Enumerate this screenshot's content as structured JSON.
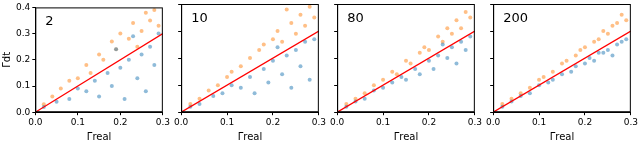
{
  "chart_data": [
    {
      "type": "scatter",
      "title": "2",
      "x_label": "Γreal",
      "y_label": "Γdt",
      "xlim": [
        0,
        0.3
      ],
      "ylim": [
        0,
        0.4
      ],
      "xticks": [
        {
          "value": 0,
          "label": "0.0"
        },
        0.1,
        0.2,
        0.3
      ],
      "yticks": [
        {
          "value": 0,
          "label": "0.0"
        },
        0.1,
        0.2,
        0.3,
        0.4
      ],
      "grid": false,
      "series": [
        {
          "type": "scatter",
          "color": "#1f77b4",
          "x": [
            0.02,
            0.05,
            0.08,
            0.1,
            0.12,
            0.14,
            0.15,
            0.17,
            0.18,
            0.2,
            0.21,
            0.22,
            0.24,
            0.25,
            0.26,
            0.27,
            0.28,
            0.29,
            0.19,
            0.23
          ],
          "values": [
            0.02,
            0.04,
            0.05,
            0.09,
            0.08,
            0.12,
            0.06,
            0.15,
            0.1,
            0.17,
            0.05,
            0.2,
            0.13,
            0.22,
            0.08,
            0.25,
            0.18,
            0.3,
            0.24,
            0.29
          ]
        },
        {
          "type": "scatter",
          "color": "#ff7f0e",
          "x": [
            0.02,
            0.04,
            0.06,
            0.08,
            0.1,
            0.12,
            0.13,
            0.15,
            0.16,
            0.18,
            0.19,
            0.2,
            0.22,
            0.23,
            0.25,
            0.26,
            0.27,
            0.28,
            0.29,
            0.24
          ],
          "values": [
            0.03,
            0.06,
            0.09,
            0.12,
            0.13,
            0.18,
            0.15,
            0.22,
            0.2,
            0.27,
            0.24,
            0.3,
            0.28,
            0.34,
            0.31,
            0.38,
            0.35,
            0.39,
            0.33,
            0.25
          ]
        },
        {
          "type": "line",
          "color": "#ff0000",
          "x": [
            0,
            0.3
          ],
          "values": [
            0,
            0.3
          ]
        }
      ]
    },
    {
      "type": "scatter",
      "title": "10",
      "x_label": "Γreal",
      "xlim": [
        0,
        0.3
      ],
      "ylim": [
        0,
        0.4
      ],
      "xticks": [
        {
          "value": 0,
          "label": "0.0"
        },
        0.1,
        0.2,
        0.3
      ],
      "yticks": [
        {
          "value": 0,
          "label": "0.0"
        },
        0.1,
        0.2,
        0.3,
        0.4
      ],
      "grid": false,
      "tick_labels": "x",
      "series": [
        {
          "type": "scatter",
          "color": "#1f77b4",
          "x": [
            0.02,
            0.04,
            0.07,
            0.09,
            0.11,
            0.13,
            0.15,
            0.16,
            0.18,
            0.19,
            0.2,
            0.22,
            0.23,
            0.24,
            0.25,
            0.26,
            0.27,
            0.28,
            0.29,
            0.21
          ],
          "values": [
            0.02,
            0.03,
            0.06,
            0.07,
            0.1,
            0.09,
            0.13,
            0.07,
            0.16,
            0.11,
            0.19,
            0.14,
            0.21,
            0.09,
            0.23,
            0.17,
            0.26,
            0.12,
            0.27,
            0.24
          ]
        },
        {
          "type": "scatter",
          "color": "#ff7f0e",
          "x": [
            0.02,
            0.04,
            0.06,
            0.08,
            0.1,
            0.11,
            0.13,
            0.15,
            0.17,
            0.18,
            0.2,
            0.21,
            0.22,
            0.24,
            0.25,
            0.26,
            0.27,
            0.28,
            0.29,
            0.23
          ],
          "values": [
            0.03,
            0.05,
            0.08,
            0.1,
            0.13,
            0.15,
            0.17,
            0.2,
            0.23,
            0.25,
            0.27,
            0.3,
            0.26,
            0.33,
            0.29,
            0.36,
            0.32,
            0.39,
            0.35,
            0.38
          ]
        },
        {
          "type": "line",
          "color": "#ff0000",
          "x": [
            0,
            0.3
          ],
          "values": [
            0,
            0.3
          ]
        }
      ]
    },
    {
      "type": "scatter",
      "title": "80",
      "x_label": "Γreal",
      "xlim": [
        0,
        0.3
      ],
      "ylim": [
        0,
        0.4
      ],
      "xticks": [
        {
          "value": 0,
          "label": "0.0"
        },
        0.1,
        0.2,
        0.3
      ],
      "yticks": [
        {
          "value": 0,
          "label": "0.0"
        },
        0.1,
        0.2,
        0.3,
        0.4
      ],
      "grid": false,
      "tick_labels": "x",
      "series": [
        {
          "type": "scatter",
          "color": "#1f77b4",
          "x": [
            0.02,
            0.04,
            0.06,
            0.08,
            0.1,
            0.12,
            0.14,
            0.15,
            0.17,
            0.18,
            0.2,
            0.21,
            0.22,
            0.24,
            0.25,
            0.26,
            0.27,
            0.28,
            0.29,
            0.23
          ],
          "values": [
            0.02,
            0.04,
            0.05,
            0.08,
            0.09,
            0.11,
            0.13,
            0.12,
            0.16,
            0.14,
            0.19,
            0.16,
            0.21,
            0.2,
            0.24,
            0.18,
            0.26,
            0.23,
            0.28,
            0.25
          ]
        },
        {
          "type": "scatter",
          "color": "#ff7f0e",
          "x": [
            0.02,
            0.04,
            0.06,
            0.08,
            0.1,
            0.12,
            0.13,
            0.15,
            0.16,
            0.18,
            0.19,
            0.2,
            0.22,
            0.23,
            0.24,
            0.25,
            0.26,
            0.27,
            0.28,
            0.29
          ],
          "values": [
            0.03,
            0.05,
            0.07,
            0.1,
            0.12,
            0.15,
            0.14,
            0.19,
            0.18,
            0.22,
            0.24,
            0.23,
            0.28,
            0.26,
            0.31,
            0.29,
            0.34,
            0.31,
            0.37,
            0.35
          ]
        },
        {
          "type": "line",
          "color": "#ff0000",
          "x": [
            0,
            0.3
          ],
          "values": [
            0,
            0.3
          ]
        }
      ]
    },
    {
      "type": "scatter",
      "title": "200",
      "x_label": "Γreal",
      "xlim": [
        0,
        0.3
      ],
      "ylim": [
        0,
        0.4
      ],
      "xticks": [
        {
          "value": 0,
          "label": "0.0"
        },
        0.1,
        0.2,
        0.3
      ],
      "yticks": [
        {
          "value": 0,
          "label": "0.0"
        },
        0.1,
        0.2,
        0.3,
        0.4
      ],
      "grid": false,
      "tick_labels": "x",
      "series": [
        {
          "type": "scatter",
          "color": "#1f77b4",
          "x": [
            0.02,
            0.04,
            0.06,
            0.08,
            0.1,
            0.12,
            0.13,
            0.15,
            0.17,
            0.18,
            0.2,
            0.21,
            0.22,
            0.24,
            0.25,
            0.26,
            0.27,
            0.28,
            0.29,
            0.23
          ],
          "values": [
            0.02,
            0.04,
            0.06,
            0.07,
            0.1,
            0.11,
            0.12,
            0.14,
            0.15,
            0.17,
            0.18,
            0.2,
            0.19,
            0.22,
            0.23,
            0.21,
            0.25,
            0.26,
            0.27,
            0.22
          ]
        },
        {
          "type": "scatter",
          "color": "#ff7f0e",
          "x": [
            0.02,
            0.04,
            0.06,
            0.08,
            0.1,
            0.11,
            0.13,
            0.15,
            0.16,
            0.18,
            0.19,
            0.2,
            0.22,
            0.23,
            0.24,
            0.25,
            0.26,
            0.27,
            0.28,
            0.29
          ],
          "values": [
            0.03,
            0.05,
            0.07,
            0.09,
            0.12,
            0.13,
            0.15,
            0.18,
            0.19,
            0.21,
            0.23,
            0.24,
            0.26,
            0.27,
            0.3,
            0.29,
            0.32,
            0.33,
            0.36,
            0.34
          ]
        },
        {
          "type": "line",
          "color": "#ff0000",
          "x": [
            0,
            0.3
          ],
          "values": [
            0,
            0.3
          ]
        }
      ]
    }
  ]
}
